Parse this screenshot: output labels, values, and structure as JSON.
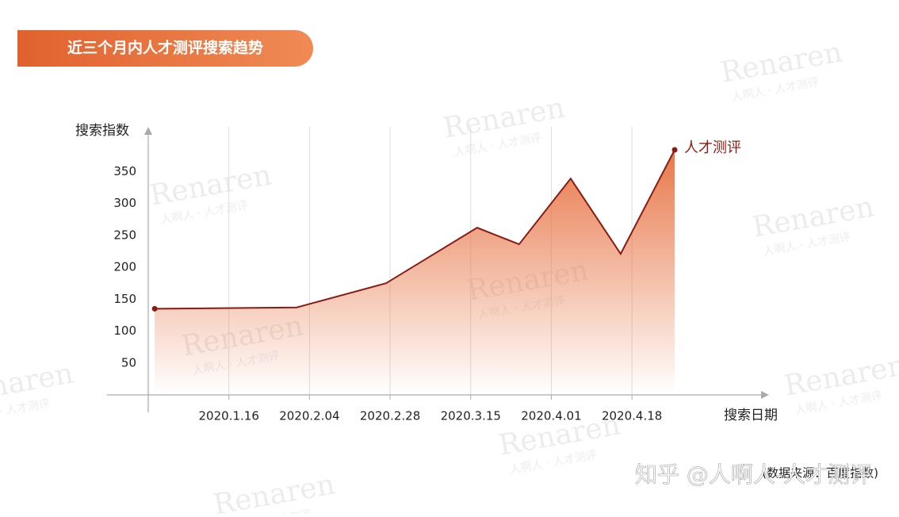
{
  "chart_data": {
    "type": "area",
    "title": "近三个月内人才测评搜索趋势",
    "y_label": "搜索指数",
    "x_label": "搜索日期",
    "source": "(数据来源：百度指数)",
    "watermark": "知乎 @人啊人-人才测评",
    "watermark_logo": "Renaren",
    "watermark_sub": "人啊人 · 人才测评",
    "x": [
      0.08,
      1.84,
      2.95,
      4.08,
      4.6,
      5.24,
      5.86,
      6.53
    ],
    "xlim": [
      0,
      7.7
    ],
    "xticks": [
      {
        "value": 1,
        "label": "2020.1.16"
      },
      {
        "value": 2,
        "label": "2020.2.04"
      },
      {
        "value": 3,
        "label": "2020.2.28"
      },
      {
        "value": 4,
        "label": "2020.3.15"
      },
      {
        "value": 5,
        "label": "2020.4.01"
      },
      {
        "value": 6,
        "label": "2020.4.18"
      }
    ],
    "ylim": [
      0,
      420
    ],
    "yticks": [
      50,
      100,
      150,
      200,
      250,
      300,
      350
    ],
    "grid": true,
    "series": [
      {
        "name": "人才测评",
        "color": "#8b1a12",
        "fill": "#e8784a",
        "values": [
          135,
          137,
          175,
          262,
          236,
          339,
          221,
          384
        ]
      }
    ]
  }
}
